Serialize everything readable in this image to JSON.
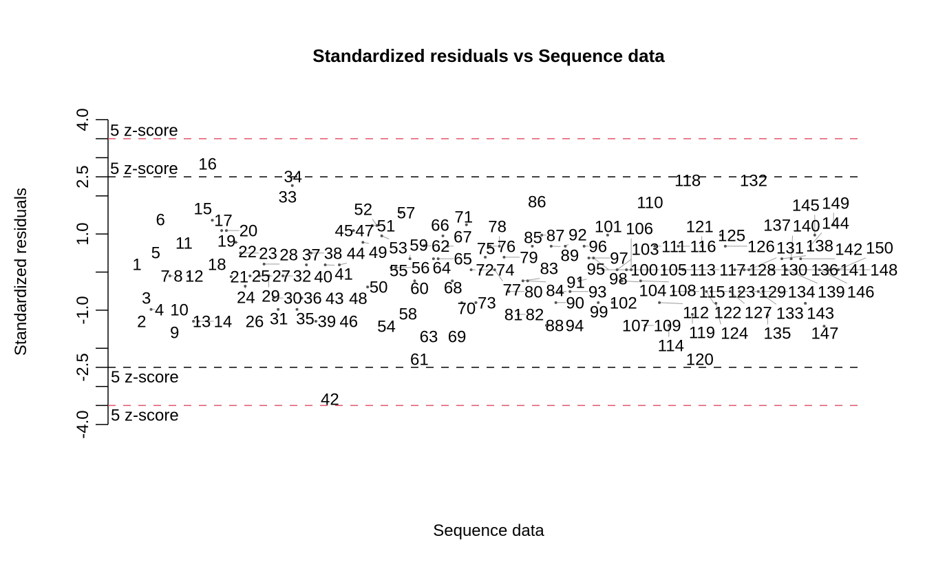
{
  "chart_data": {
    "type": "scatter",
    "title": "Standardized residuals vs Sequence data",
    "xlabel": "Sequence data",
    "ylabel": "Standardized residuals",
    "ylim": [
      -4.0,
      4.0
    ],
    "xlim": [
      1,
      150
    ],
    "y_tick_labels": [
      "4.0",
      "2.5",
      "1.0",
      "-1.0",
      "-2.5",
      "-4.0"
    ],
    "y_tick_label_values": [
      4.0,
      2.5,
      1.0,
      -1.0,
      -2.5,
      -4.0
    ],
    "y_ticks": [
      4,
      3.5,
      3,
      2.5,
      2,
      1,
      0,
      -1,
      -2,
      -2.5,
      -3,
      -3.5,
      -4
    ],
    "point_marker": "index-label",
    "x": [
      1,
      2,
      3,
      4,
      5,
      6,
      7,
      8,
      9,
      10,
      11,
      12,
      13,
      14,
      15,
      16,
      17,
      18,
      19,
      20,
      21,
      22,
      23,
      24,
      25,
      26,
      27,
      28,
      29,
      30,
      31,
      32,
      33,
      34,
      35,
      36,
      37,
      38,
      39,
      40,
      41,
      42,
      43,
      44,
      45,
      46,
      47,
      48,
      49,
      50,
      51,
      52,
      53,
      54,
      55,
      56,
      57,
      58,
      59,
      60,
      61,
      62,
      63,
      64,
      65,
      66,
      67,
      68,
      69,
      70,
      71,
      72,
      73,
      74,
      75,
      76,
      77,
      78,
      79,
      80,
      81,
      82,
      83,
      84,
      85,
      86,
      87,
      88,
      89,
      90,
      91,
      92,
      93,
      94,
      95,
      96,
      97,
      98,
      99,
      100,
      101,
      102,
      103,
      104,
      105,
      106,
      107,
      108,
      109,
      110,
      111,
      112,
      113,
      114,
      115,
      116,
      117,
      118,
      119,
      120,
      121,
      122,
      123,
      124,
      125,
      126,
      127,
      128,
      129,
      130,
      131,
      132,
      133,
      134,
      135,
      136,
      137,
      138,
      139,
      140,
      141,
      142,
      143,
      144,
      145,
      146,
      147,
      148,
      149,
      150
    ],
    "y": [
      0.21,
      -1.29,
      -0.68,
      -0.98,
      0.51,
      1.38,
      -0.1,
      -0.1,
      -1.58,
      -0.98,
      0.77,
      -0.1,
      -1.29,
      -1.29,
      1.67,
      2.84,
      1.36,
      0.21,
      1.09,
      1.09,
      -0.12,
      0.78,
      0.5,
      -0.37,
      -0.1,
      -1.29,
      -0.1,
      0.21,
      -0.1,
      -0.68,
      -0.98,
      -0.1,
      1.98,
      2.27,
      -0.98,
      -0.68,
      0.19,
      0.5,
      -1.29,
      -0.12,
      0.19,
      -3.33,
      -0.69,
      0.19,
      1.09,
      -1.29,
      1.09,
      -0.69,
      0.78,
      -0.39,
      1.22,
      1.22,
      0.95,
      -1.42,
      0.12,
      0.12,
      1.56,
      -1.09,
      0.35,
      -0.23,
      -2.28,
      0.69,
      -1.69,
      0.35,
      0.35,
      0.95,
      0.68,
      -0.23,
      -1.69,
      -0.8,
      1.24,
      0.06,
      -0.8,
      0.06,
      0.39,
      0.68,
      0.06,
      0.68,
      0.39,
      -0.51,
      -1.11,
      -1.11,
      -0.23,
      -0.23,
      0.68,
      1.85,
      0.97,
      -1.4,
      0.68,
      -0.8,
      -0.51,
      0.68,
      -0.51,
      -1.4,
      -0.23,
      0.68,
      0.37,
      0.37,
      -0.8,
      0.06,
      0.97,
      -0.8,
      0.06,
      -0.23,
      0.06,
      0.06,
      -1.4,
      -0.23,
      -1.4,
      1.83,
      0.68,
      -0.8,
      0.06,
      -1.4,
      -0.51,
      0.68,
      0.06,
      2.41,
      -1.11,
      -2.28,
      0.68,
      -0.51,
      -0.51,
      -0.82,
      0.97,
      0.68,
      -0.51,
      0.06,
      -0.51,
      0.06,
      0.06,
      2.41,
      -0.51,
      -0.51,
      -1.13,
      0.06,
      1.24,
      0.35,
      0.06,
      0.35,
      0.06,
      0.35,
      -0.82,
      0.68,
      0.97,
      0.06,
      -1.42,
      0.06,
      1.24,
      0.06
    ],
    "reference_lines": [
      {
        "value": 3.5,
        "color": "#DF536B",
        "label": "5 z-score"
      },
      {
        "value": 2.5,
        "color": "#000000",
        "label": "5 z-score"
      },
      {
        "value": -2.5,
        "color": "#000000",
        "label": "5 z-score"
      },
      {
        "value": -3.5,
        "color": "#DF536B",
        "label": "5 z-score"
      }
    ],
    "grid": false
  }
}
